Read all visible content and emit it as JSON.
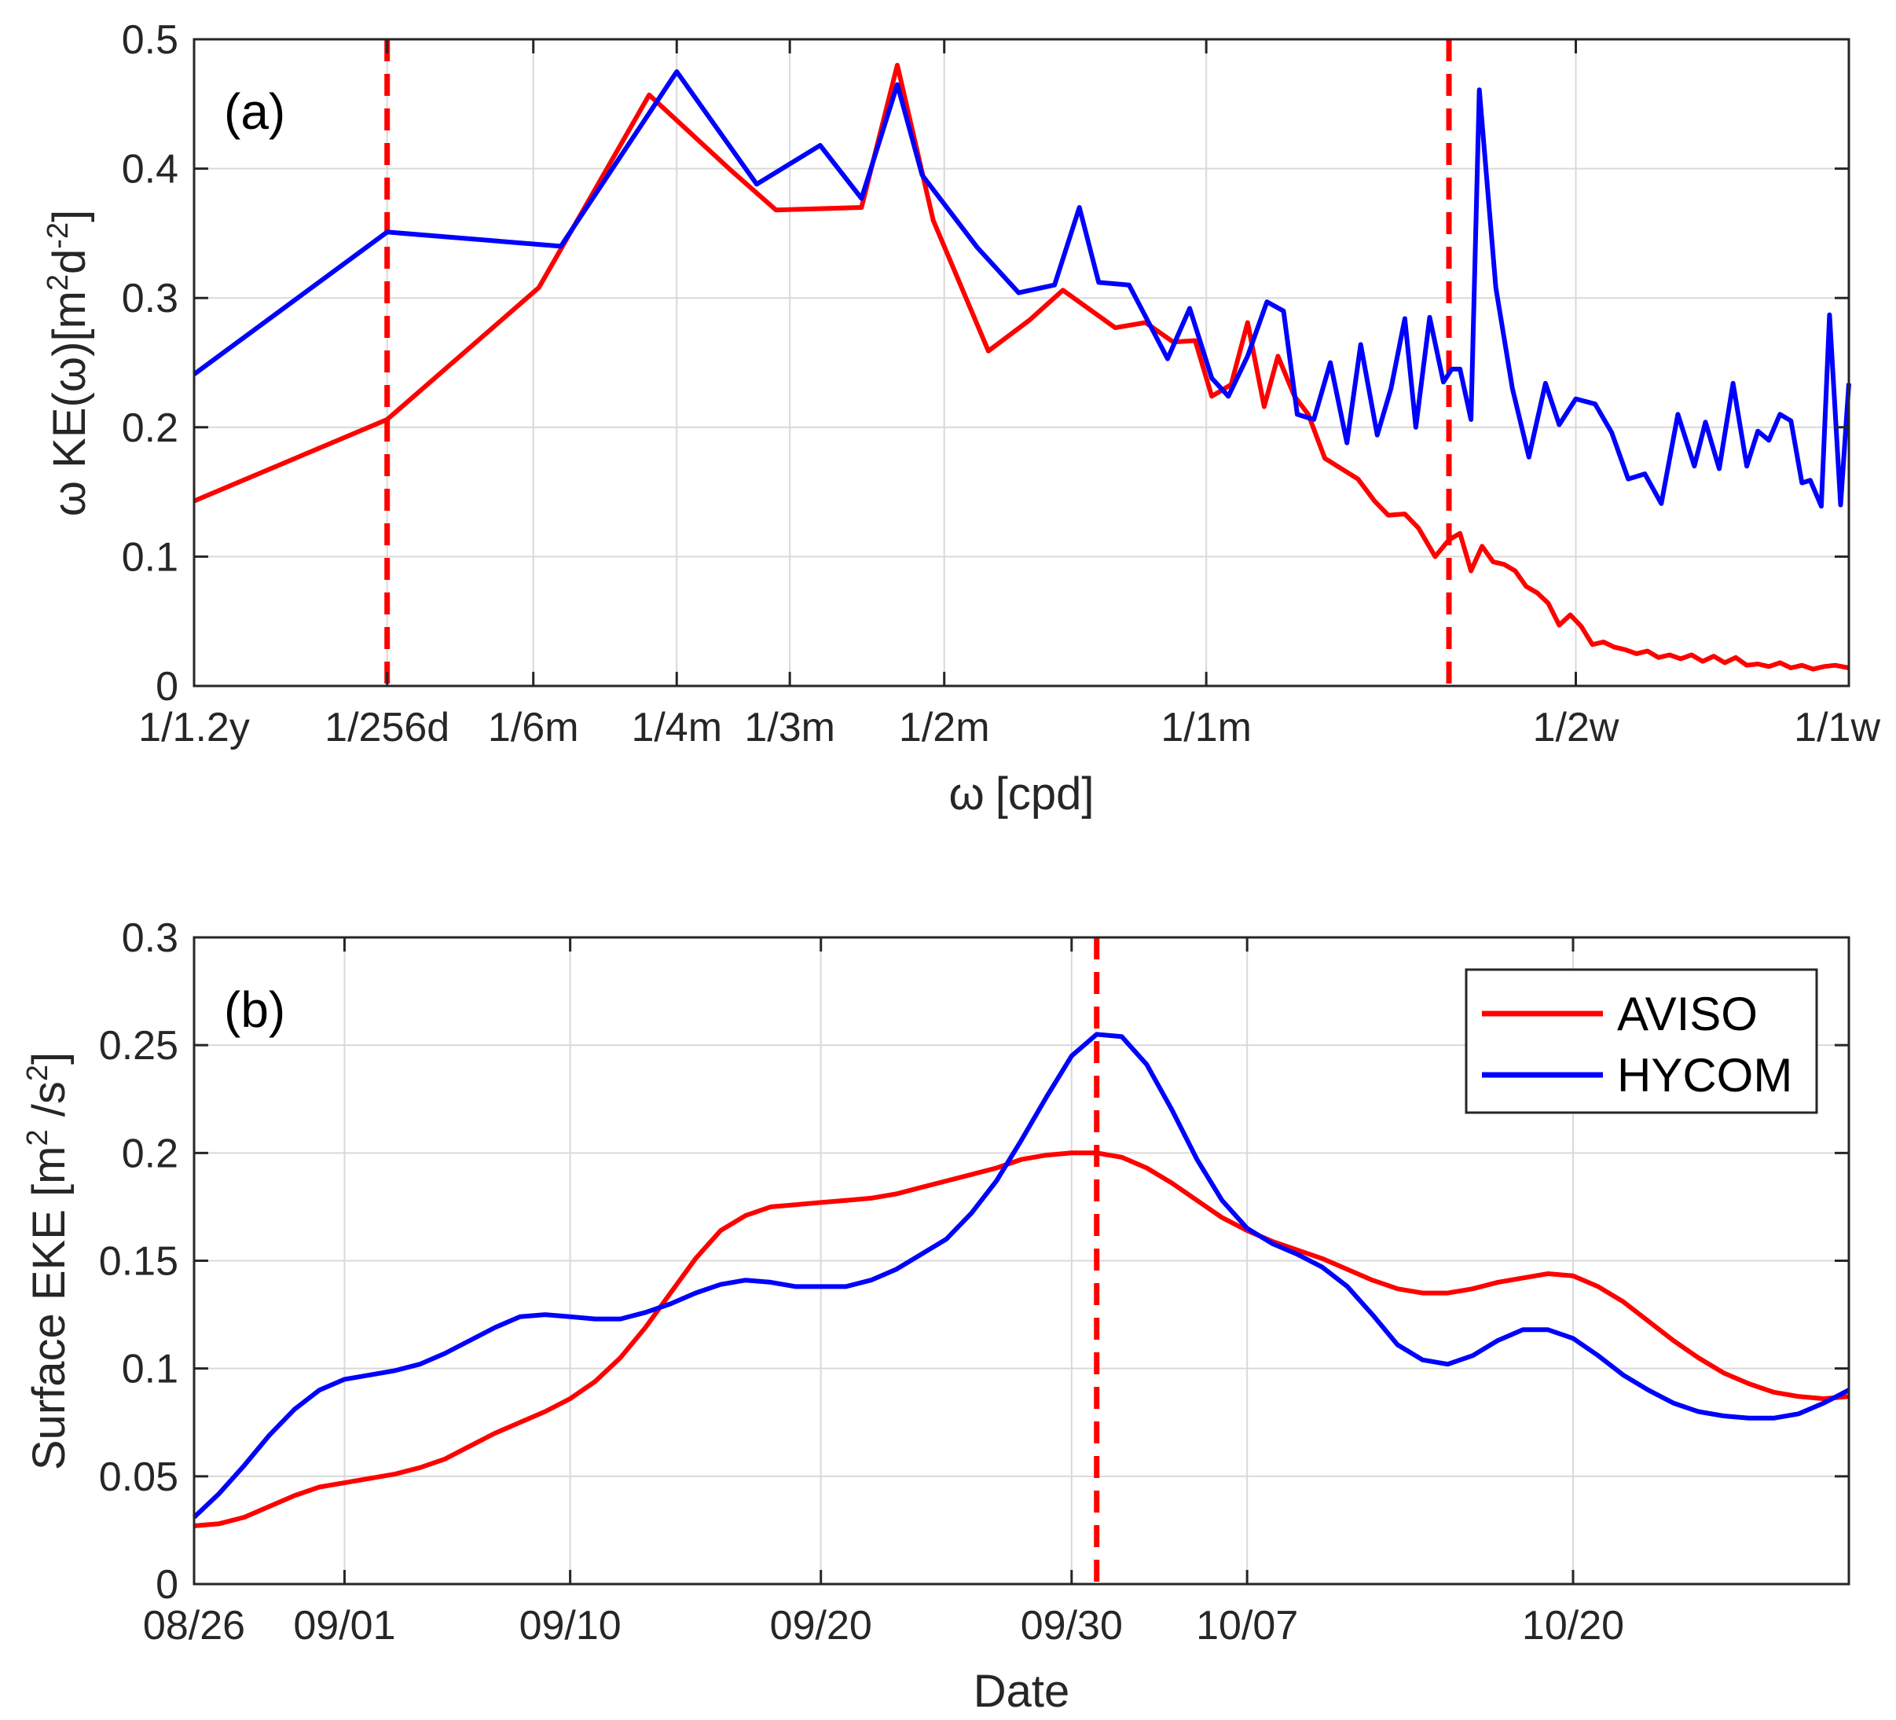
{
  "colors": {
    "aviso": "#ff0000",
    "hycom": "#0000ff",
    "marker": "#ff0000"
  },
  "chart_data": [
    {
      "panel_tag": "(a)",
      "type": "line",
      "xlabel_symbol": "ω",
      "xlabel_unit": "[cpd]",
      "ylabel_prefix": "ω KE(ω)[m",
      "ylabel_mid": "d",
      "ylabel_suffix": "]",
      "ylabel_sup1": "2",
      "ylabel_sup2": "-2",
      "xlim": [
        0,
        60
      ],
      "ylim": [
        0,
        0.5
      ],
      "yticks": [
        0,
        0.1,
        0.2,
        0.3,
        0.4,
        0.5
      ],
      "ytick_labels": [
        "0",
        "0.1",
        "0.2",
        "0.3",
        "0.4",
        "0.5"
      ],
      "xticks": [
        {
          "x": 0,
          "label": "1/1.2y"
        },
        {
          "x": 7,
          "label": "1/256d"
        },
        {
          "x": 12.3,
          "label": "1/6m"
        },
        {
          "x": 17.5,
          "label": "1/4m"
        },
        {
          "x": 21.6,
          "label": "1/3m"
        },
        {
          "x": 27.2,
          "label": "1/2m"
        },
        {
          "x": 36.7,
          "label": "1/1m"
        },
        {
          "x": 50.1,
          "label": "1/2w"
        },
        {
          "x": 60,
          "label": "1/1w"
        }
      ],
      "vlines": [
        7,
        45.5
      ],
      "series": [
        {
          "name": "AVISO",
          "x": [
            0,
            7,
            12.5,
            16.5,
            19.5,
            21.1,
            24.2,
            25.5,
            26.8,
            28.8,
            30.3,
            31.5,
            33.4,
            34.5,
            35.5,
            36.3,
            36.9,
            37.6,
            38.2,
            38.8,
            39.3,
            39.9,
            40.4,
            41.0,
            41.6,
            42.2,
            42.8,
            43.3,
            43.9,
            44.4,
            45.0,
            45.5,
            45.9,
            46.3,
            46.7,
            47.1,
            47.5,
            47.9,
            48.3,
            48.7,
            49.1,
            49.5,
            49.9,
            50.3,
            50.7,
            51.1,
            51.5,
            51.9,
            52.3,
            52.7,
            53.1,
            53.5,
            53.9,
            54.3,
            54.7,
            55.1,
            55.5,
            55.9,
            56.3,
            56.7,
            57.1,
            57.5,
            57.9,
            58.3,
            58.7,
            59.1,
            59.5,
            60
          ],
          "values": [
            0.143,
            0.206,
            0.308,
            0.457,
            0.398,
            0.368,
            0.37,
            0.48,
            0.36,
            0.259,
            0.283,
            0.306,
            0.277,
            0.281,
            0.266,
            0.267,
            0.224,
            0.233,
            0.281,
            0.216,
            0.255,
            0.224,
            0.21,
            0.176,
            0.168,
            0.16,
            0.143,
            0.132,
            0.133,
            0.122,
            0.1,
            0.113,
            0.118,
            0.089,
            0.108,
            0.096,
            0.094,
            0.089,
            0.077,
            0.072,
            0.064,
            0.047,
            0.055,
            0.046,
            0.032,
            0.034,
            0.03,
            0.028,
            0.025,
            0.027,
            0.022,
            0.024,
            0.021,
            0.024,
            0.019,
            0.023,
            0.018,
            0.022,
            0.016,
            0.017,
            0.015,
            0.018,
            0.014,
            0.016,
            0.013,
            0.015,
            0.016,
            0.014
          ]
        },
        {
          "name": "HYCOM",
          "x": [
            0,
            7,
            13.3,
            17.5,
            20.4,
            22.7,
            24.2,
            25.5,
            26.4,
            28.4,
            29.9,
            31.2,
            32.1,
            32.8,
            33.9,
            35.3,
            36.1,
            36.9,
            37.5,
            38.2,
            38.9,
            39.5,
            40.0,
            40.6,
            41.2,
            41.8,
            42.3,
            42.9,
            43.4,
            43.9,
            44.3,
            44.8,
            45.3,
            45.6,
            45.9,
            46.3,
            46.6,
            47.2,
            47.8,
            48.4,
            49.0,
            49.5,
            50.1,
            50.8,
            51.4,
            52.0,
            52.6,
            53.2,
            53.8,
            54.4,
            54.8,
            55.3,
            55.8,
            56.3,
            56.7,
            57.1,
            57.5,
            57.9,
            58.3,
            58.6,
            59.0,
            59.3,
            59.7,
            60
          ],
          "values": [
            0.241,
            0.351,
            0.34,
            0.475,
            0.388,
            0.418,
            0.377,
            0.465,
            0.395,
            0.339,
            0.304,
            0.31,
            0.37,
            0.312,
            0.31,
            0.253,
            0.292,
            0.238,
            0.224,
            0.255,
            0.297,
            0.29,
            0.21,
            0.206,
            0.25,
            0.188,
            0.264,
            0.194,
            0.23,
            0.284,
            0.2,
            0.285,
            0.235,
            0.245,
            0.245,
            0.206,
            0.461,
            0.308,
            0.23,
            0.177,
            0.234,
            0.202,
            0.222,
            0.218,
            0.196,
            0.16,
            0.164,
            0.141,
            0.21,
            0.17,
            0.204,
            0.168,
            0.234,
            0.17,
            0.197,
            0.19,
            0.21,
            0.205,
            0.157,
            0.159,
            0.139,
            0.287,
            0.14,
            0.234
          ]
        }
      ]
    },
    {
      "panel_tag": "(b)",
      "type": "line",
      "xlabel": "Date",
      "ylabel_prefix": "Surface EKE [m",
      "ylabel_mid": " /s",
      "ylabel_suffix": "]",
      "ylabel_sup1": "2",
      "ylabel_sup2": "2",
      "xlim": [
        0,
        66
      ],
      "ylim": [
        0,
        0.3
      ],
      "yticks": [
        0,
        0.05,
        0.1,
        0.15,
        0.2,
        0.25,
        0.3
      ],
      "ytick_labels": [
        "0",
        "0.05",
        "0.1",
        "0.15",
        "0.2",
        "0.25",
        "0.3"
      ],
      "xticks": [
        {
          "x": 0,
          "label": "08/26"
        },
        {
          "x": 6,
          "label": "09/01"
        },
        {
          "x": 15,
          "label": "09/10"
        },
        {
          "x": 25,
          "label": "09/20"
        },
        {
          "x": 35,
          "label": "09/30"
        },
        {
          "x": 42,
          "label": "10/07"
        },
        {
          "x": 55,
          "label": "10/20"
        }
      ],
      "vlines": [
        36
      ],
      "legend": [
        "AVISO",
        "HYCOM"
      ],
      "series": [
        {
          "name": "AVISO",
          "x": [
            0,
            1,
            2,
            3,
            4,
            5,
            6,
            7,
            8,
            9,
            10,
            11,
            12,
            13,
            14,
            15,
            16,
            17,
            18,
            19,
            20,
            21,
            22,
            23,
            24,
            25,
            26,
            27,
            28,
            29,
            30,
            31,
            32,
            33,
            34,
            35,
            36,
            37,
            38,
            39,
            40,
            41,
            42,
            43,
            44,
            45,
            46,
            47,
            48,
            49,
            50,
            51,
            52,
            53,
            54,
            55,
            56,
            57,
            58,
            59,
            60,
            61,
            62,
            63,
            64,
            65,
            66
          ],
          "values": [
            0.027,
            0.028,
            0.031,
            0.036,
            0.041,
            0.045,
            0.047,
            0.049,
            0.051,
            0.054,
            0.058,
            0.064,
            0.07,
            0.075,
            0.08,
            0.086,
            0.094,
            0.105,
            0.119,
            0.135,
            0.151,
            0.164,
            0.171,
            0.175,
            0.176,
            0.177,
            0.178,
            0.179,
            0.181,
            0.184,
            0.187,
            0.19,
            0.193,
            0.197,
            0.199,
            0.2,
            0.2,
            0.198,
            0.193,
            0.186,
            0.178,
            0.17,
            0.164,
            0.159,
            0.155,
            0.151,
            0.146,
            0.141,
            0.137,
            0.135,
            0.135,
            0.137,
            0.14,
            0.142,
            0.144,
            0.143,
            0.138,
            0.131,
            0.122,
            0.113,
            0.105,
            0.098,
            0.093,
            0.089,
            0.087,
            0.086,
            0.087
          ]
        },
        {
          "name": "HYCOM",
          "x": [
            0,
            1,
            2,
            3,
            4,
            5,
            6,
            7,
            8,
            9,
            10,
            11,
            12,
            13,
            14,
            15,
            16,
            17,
            18,
            19,
            20,
            21,
            22,
            23,
            24,
            25,
            26,
            27,
            28,
            29,
            30,
            31,
            32,
            33,
            34,
            35,
            36,
            37,
            38,
            39,
            40,
            41,
            42,
            43,
            44,
            45,
            46,
            47,
            48,
            49,
            50,
            51,
            52,
            53,
            54,
            55,
            56,
            57,
            58,
            59,
            60,
            61,
            62,
            63,
            64,
            65,
            66
          ],
          "values": [
            0.031,
            0.042,
            0.055,
            0.069,
            0.081,
            0.09,
            0.095,
            0.097,
            0.099,
            0.102,
            0.107,
            0.113,
            0.119,
            0.124,
            0.125,
            0.124,
            0.123,
            0.123,
            0.126,
            0.13,
            0.135,
            0.139,
            0.141,
            0.14,
            0.138,
            0.138,
            0.138,
            0.141,
            0.146,
            0.153,
            0.16,
            0.172,
            0.187,
            0.206,
            0.226,
            0.245,
            0.255,
            0.254,
            0.241,
            0.22,
            0.197,
            0.178,
            0.165,
            0.158,
            0.153,
            0.147,
            0.138,
            0.125,
            0.111,
            0.104,
            0.102,
            0.106,
            0.113,
            0.118,
            0.118,
            0.114,
            0.106,
            0.097,
            0.09,
            0.084,
            0.08,
            0.078,
            0.077,
            0.077,
            0.079,
            0.084,
            0.09
          ]
        }
      ]
    }
  ]
}
